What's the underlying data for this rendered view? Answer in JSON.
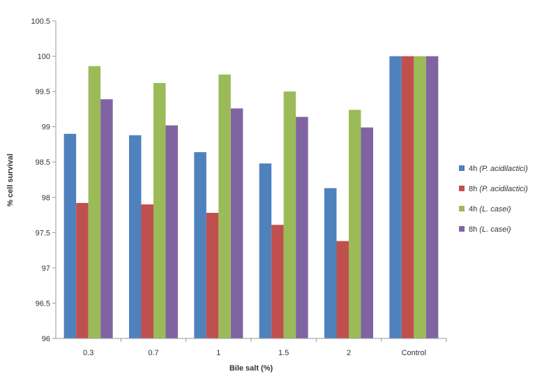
{
  "chart_data": {
    "type": "bar",
    "title": "",
    "xlabel": "Bile salt (%)",
    "ylabel": "% cell survival",
    "ylim": [
      96,
      100.5
    ],
    "yticks": [
      "96",
      "96.5",
      "97",
      "97.5",
      "98",
      "98.5",
      "99",
      "99.5",
      "100",
      "100.5"
    ],
    "grid": false,
    "legend_position": "right",
    "categories": [
      "0.3",
      "0.7",
      "1",
      "1.5",
      "2",
      "Control"
    ],
    "series": [
      {
        "name": "4h (P. acidilactici)",
        "name_prefix": "4h",
        "name_italic": "(P. acidilactici)",
        "color": "#4f81bd",
        "values": [
          98.9,
          98.88,
          98.64,
          98.48,
          98.13,
          100
        ]
      },
      {
        "name": "8h (P. acidilactici)",
        "name_prefix": "8h",
        "name_italic": "(P. acidilactici)",
        "color": "#c0504d",
        "values": [
          97.92,
          97.9,
          97.78,
          97.61,
          97.38,
          100
        ]
      },
      {
        "name": "4h (L. casei)",
        "name_prefix": "4h",
        "name_italic": "(L. casei)",
        "color": "#9bbb59",
        "values": [
          99.86,
          99.62,
          99.74,
          99.5,
          99.24,
          100
        ]
      },
      {
        "name": "8h (L. casei)",
        "name_prefix": "8h",
        "name_italic": "(L. casei)",
        "color": "#8064a2",
        "values": [
          99.39,
          99.02,
          99.26,
          99.14,
          98.99,
          100
        ]
      }
    ]
  }
}
